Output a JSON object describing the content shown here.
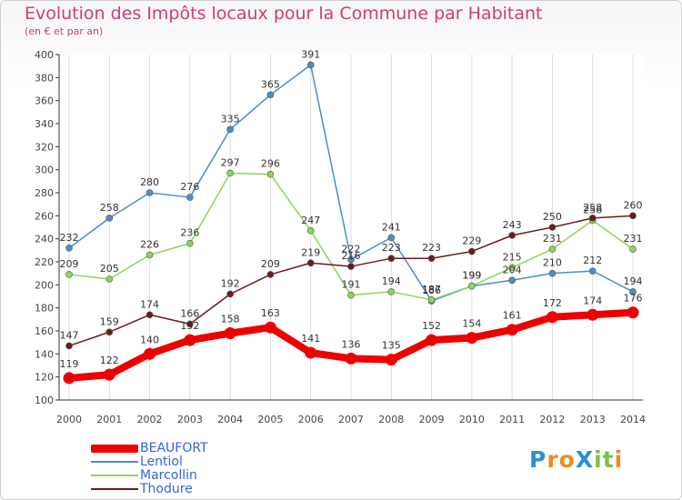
{
  "title": "Evolution des Impôts locaux pour la Commune par Habitant",
  "subtitle": "(en € et par an)",
  "logo": {
    "text": "ProXiti",
    "letters": [
      "P",
      "r",
      "o",
      "X",
      "i",
      "t",
      "i"
    ],
    "colors": [
      "#2a8fd6",
      "#f28a1c",
      "#f28a1c",
      "#2a8fd6",
      "#7ac143",
      "#7ac143",
      "#f28a1c"
    ]
  },
  "chart_data": {
    "type": "line",
    "x": [
      2000,
      2001,
      2002,
      2003,
      2004,
      2005,
      2006,
      2007,
      2008,
      2009,
      2010,
      2011,
      2012,
      2013,
      2014
    ],
    "ylim": [
      100,
      400
    ],
    "yticks": [
      100,
      120,
      140,
      160,
      180,
      200,
      220,
      240,
      260,
      280,
      300,
      320,
      340,
      360,
      380,
      400
    ],
    "grid": "vertical",
    "legend_position": "bottom-left",
    "series": [
      {
        "name": "BEAUFORT",
        "color": "#ee0000",
        "values": [
          119,
          122,
          140,
          152,
          158,
          163,
          141,
          136,
          135,
          152,
          154,
          161,
          172,
          174,
          176
        ]
      },
      {
        "name": "Lentiol",
        "color": "#4a8ec9",
        "values": [
          232,
          258,
          280,
          276,
          335,
          365,
          391,
          222,
          241,
          186,
          199,
          204,
          210,
          212,
          194
        ]
      },
      {
        "name": "Marcollin",
        "color": "#8cd45c",
        "values": [
          209,
          205,
          226,
          236,
          297,
          296,
          247,
          191,
          194,
          187,
          199,
          215,
          231,
          256,
          231
        ]
      },
      {
        "name": "Thodure",
        "color": "#6b1b1b",
        "values": [
          147,
          159,
          174,
          166,
          192,
          209,
          219,
          216,
          223,
          223,
          229,
          243,
          250,
          258,
          260
        ]
      }
    ]
  }
}
